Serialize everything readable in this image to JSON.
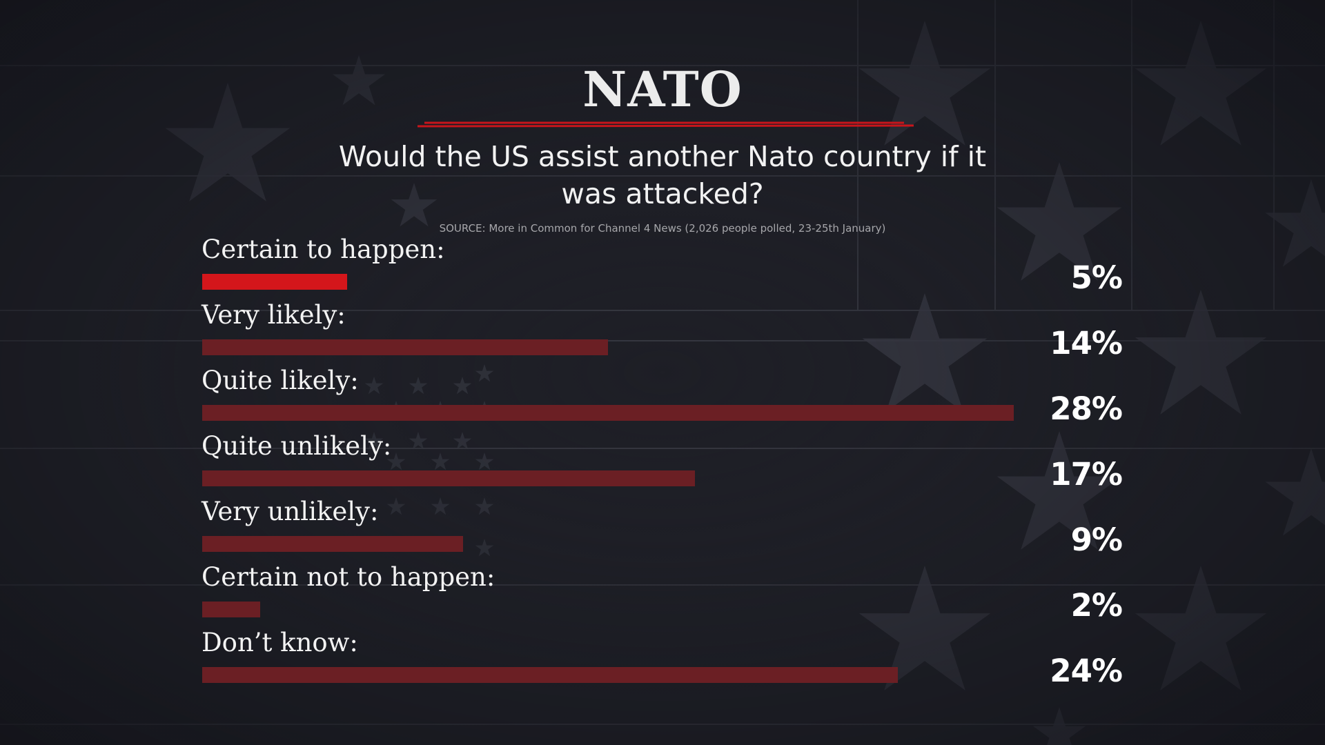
{
  "title": "NATO",
  "subtitle": "Would the US assist another Nato country if it was attacked?",
  "source": "SOURCE: More in Common for Channel 4 News (2,026 people polled, 23-25th January)",
  "colors": {
    "background": "#1e1f26",
    "highlight_bar": "#d4161b",
    "bar": "#6b1f24",
    "title_underline": "#c8151b"
  },
  "chart_data": {
    "type": "bar",
    "orientation": "horizontal",
    "title": "NATO",
    "subtitle": "Would the US assist another Nato country if it was attacked?",
    "categories": [
      "Certain to happen:",
      "Very likely:",
      "Quite likely:",
      "Quite unlikely:",
      "Very unlikely:",
      "Certain not to happen:",
      "Don’t know:"
    ],
    "values": [
      5,
      14,
      28,
      17,
      9,
      2,
      24
    ],
    "value_labels": [
      "5%",
      "14%",
      "28%",
      "17%",
      "9%",
      "2%",
      "24%"
    ],
    "highlight_index": 0,
    "unit": "%",
    "xlim": [
      0,
      28
    ],
    "grid": false,
    "legend": "none"
  }
}
